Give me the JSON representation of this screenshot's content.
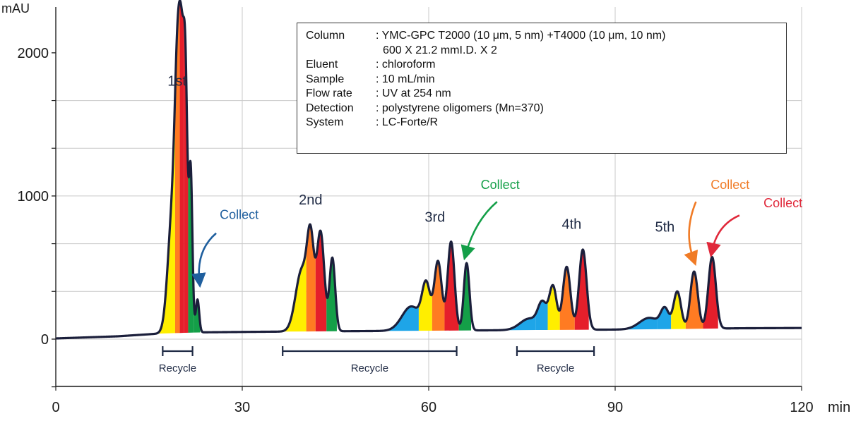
{
  "chart_data": {
    "type": "area",
    "y_unit": "mAU",
    "x_unit": "min",
    "xlim": [
      0,
      120
    ],
    "ylim": [
      -330,
      2320
    ],
    "x_ticks": [
      "0",
      "30",
      "60",
      "90",
      "120"
    ],
    "y_ticks": [
      "0",
      "1000",
      "2000"
    ],
    "grid": true,
    "baseline": [
      [
        0,
        5
      ],
      [
        10,
        20
      ],
      [
        17,
        40
      ],
      [
        24,
        48
      ],
      [
        34,
        52
      ],
      [
        48,
        56
      ],
      [
        63,
        60
      ],
      [
        78,
        64
      ],
      [
        94,
        68
      ],
      [
        110,
        76
      ],
      [
        120,
        78
      ]
    ],
    "passes": [
      {
        "label": "1st",
        "label_pos": [
          19.5,
          1770
        ],
        "peaks": [
          {
            "t": 18.8,
            "h": 850,
            "w": 0.75,
            "color": "#ffee00"
          },
          {
            "t": 19.6,
            "h": 1330,
            "w": 0.45,
            "color": "#ff7b22"
          },
          {
            "t": 20.3,
            "h": 1500,
            "w": 0.42,
            "color": "#e51f2b"
          },
          {
            "t": 20.9,
            "h": 1370,
            "w": 0.32,
            "color": "#e51f2b"
          },
          {
            "t": 21.7,
            "h": 1120,
            "w": 0.28,
            "color": "#149f48"
          },
          {
            "t": 22.8,
            "h": 230,
            "w": 0.27,
            "color": "#149f48"
          }
        ]
      },
      {
        "label": "2nd",
        "label_pos": [
          41,
          940
        ],
        "peaks": [
          {
            "t": 39.6,
            "h": 430,
            "w": 1.0,
            "color": "#ffee00"
          },
          {
            "t": 41.0,
            "h": 560,
            "w": 0.55,
            "color": "#ff7b22"
          },
          {
            "t": 42.6,
            "h": 690,
            "w": 0.6,
            "color": "#e51f2b"
          },
          {
            "t": 44.5,
            "h": 510,
            "w": 0.45,
            "color": "#149f48"
          }
        ]
      },
      {
        "label": "3rd",
        "label_pos": [
          61,
          820
        ],
        "peaks": [
          {
            "t": 57.2,
            "h": 170,
            "w": 1.5,
            "color": "#1ea5e8"
          },
          {
            "t": 59.6,
            "h": 300,
            "w": 0.65,
            "color": "#ffee00"
          },
          {
            "t": 61.5,
            "h": 480,
            "w": 0.6,
            "color": "#ff7b22"
          },
          {
            "t": 63.6,
            "h": 620,
            "w": 0.55,
            "color": "#e51f2b"
          },
          {
            "t": 66.1,
            "h": 470,
            "w": 0.45,
            "color": "#149f48"
          }
        ]
      },
      {
        "label": "4th",
        "label_pos": [
          83,
          770
        ],
        "peaks": [
          {
            "t": 76.2,
            "h": 80,
            "w": 1.5,
            "color": "#1ea5e8"
          },
          {
            "t": 78.3,
            "h": 170,
            "w": 0.7,
            "color": "#1ea5e8"
          },
          {
            "t": 80.0,
            "h": 300,
            "w": 0.6,
            "color": "#ffee00"
          },
          {
            "t": 82.2,
            "h": 440,
            "w": 0.6,
            "color": "#ff7b22"
          },
          {
            "t": 84.8,
            "h": 560,
            "w": 0.6,
            "color": "#e51f2b"
          }
        ]
      },
      {
        "label": "5th",
        "label_pos": [
          98,
          750
        ],
        "peaks": [
          {
            "t": 95.5,
            "h": 80,
            "w": 1.6,
            "color": "#1ea5e8"
          },
          {
            "t": 98.0,
            "h": 130,
            "w": 0.65,
            "color": "#1ea5e8"
          },
          {
            "t": 100.0,
            "h": 260,
            "w": 0.6,
            "color": "#ffee00"
          },
          {
            "t": 102.7,
            "h": 400,
            "w": 0.6,
            "color": "#ff7b22"
          },
          {
            "t": 105.6,
            "h": 500,
            "w": 0.6,
            "color": "#e51f2b"
          }
        ]
      }
    ],
    "collect_annotations": [
      {
        "text": "Collect",
        "color": "#1f5f9e",
        "text_pos": [
          29.5,
          840
        ],
        "arrow_start": [
          25.8,
          740
        ],
        "arrow_ctrl": [
          22.6,
          620
        ],
        "arrow_end": [
          23.1,
          410
        ]
      },
      {
        "text": "Collect",
        "color": "#149f48",
        "text_pos": [
          71.5,
          1050
        ],
        "arrow_start": [
          71.0,
          960
        ],
        "arrow_ctrl": [
          67.5,
          830
        ],
        "arrow_end": [
          66.0,
          600
        ]
      },
      {
        "text": "Collect",
        "color": "#f07b26",
        "text_pos": [
          108.5,
          1050
        ],
        "arrow_start": [
          103.0,
          960
        ],
        "arrow_ctrl": [
          101.0,
          750
        ],
        "arrow_end": [
          102.6,
          560
        ]
      },
      {
        "text": "Collect",
        "color": "#e0283a",
        "text_pos": [
          117.0,
          920
        ],
        "arrow_start": [
          110.0,
          865
        ],
        "arrow_ctrl": [
          106.5,
          800
        ],
        "arrow_end": [
          105.6,
          620
        ]
      }
    ],
    "recycle_ranges": [
      {
        "label": "Recycle",
        "x": [
          17.2,
          22.0
        ]
      },
      {
        "label": "Recycle",
        "x": [
          36.5,
          64.5
        ]
      },
      {
        "label": "Recycle",
        "x": [
          74.2,
          86.6
        ]
      }
    ]
  },
  "conditions": {
    "rows": [
      {
        "key": "Column",
        "value": ": YMC-GPC T2000 (10 μm, 5 nm) +T4000  (10 μm, 10 nm)",
        "cont": "600 X 21.2 mmI.D. X 2"
      },
      {
        "key": "Eluent",
        "value": ": chloroform"
      },
      {
        "key": "Sample",
        "value": ": 10 mL/min"
      },
      {
        "key": "Flow rate",
        "value": ": UV at 254 nm"
      },
      {
        "key": "Detection",
        "value": ": polystyrene oligomers (Mn=370)"
      },
      {
        "key": "System",
        "value": ": LC-Forte/R"
      }
    ]
  }
}
